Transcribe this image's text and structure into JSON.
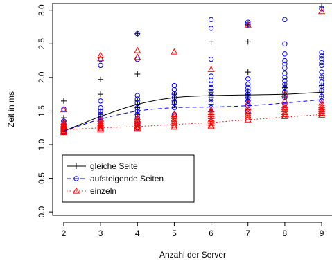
{
  "chart_data": {
    "type": "scatter",
    "title": "",
    "xlabel": "Anzahl der Server",
    "ylabel": "Zeit in ms",
    "xlim": [
      1.7,
      9.3
    ],
    "ylim": [
      -0.05,
      3.1
    ],
    "xticks": [
      "2",
      "3",
      "4",
      "5",
      "6",
      "7",
      "8",
      "9"
    ],
    "yticks": [
      "0.0",
      "0.5",
      "1.0",
      "1.5",
      "2.0",
      "2.5",
      "3.0"
    ],
    "grid": false,
    "legend_position": "bottom-left",
    "series": [
      {
        "name": "gleiche Seite",
        "color": "#000000",
        "marker": "plus",
        "line_style": "solid",
        "fit": [
          [
            2,
            1.2
          ],
          [
            3,
            1.42
          ],
          [
            4,
            1.6
          ],
          [
            5,
            1.7
          ],
          [
            6,
            1.73
          ],
          [
            7,
            1.74
          ],
          [
            8,
            1.75
          ],
          [
            9,
            1.78
          ]
        ],
        "points": [
          [
            2,
            1.65
          ],
          [
            2,
            1.4
          ],
          [
            2,
            1.35
          ],
          [
            2,
            1.3
          ],
          [
            2,
            1.25
          ],
          [
            2,
            1.2
          ],
          [
            3,
            1.97
          ],
          [
            3,
            1.75
          ],
          [
            3,
            1.5
          ],
          [
            3,
            1.45
          ],
          [
            3,
            1.4
          ],
          [
            3,
            1.35
          ],
          [
            4,
            2.65
          ],
          [
            4,
            2.05
          ],
          [
            4,
            1.65
          ],
          [
            4,
            1.6
          ],
          [
            4,
            1.55
          ],
          [
            4,
            1.5
          ],
          [
            4,
            1.45
          ],
          [
            5,
            1.75
          ],
          [
            5,
            1.7
          ],
          [
            5,
            1.65
          ],
          [
            5,
            1.6
          ],
          [
            6,
            2.53
          ],
          [
            6,
            1.82
          ],
          [
            6,
            1.78
          ],
          [
            6,
            1.74
          ],
          [
            6,
            1.7
          ],
          [
            6,
            1.66
          ],
          [
            6,
            1.6
          ],
          [
            7,
            2.78
          ],
          [
            7,
            2.53
          ],
          [
            7,
            2.08
          ],
          [
            7,
            1.8
          ],
          [
            7,
            1.75
          ],
          [
            7,
            1.7
          ],
          [
            7,
            1.65
          ],
          [
            8,
            1.9
          ],
          [
            8,
            1.85
          ],
          [
            8,
            1.8
          ],
          [
            8,
            1.75
          ],
          [
            8,
            1.7
          ],
          [
            9,
            3.05
          ],
          [
            9,
            2.0
          ],
          [
            9,
            1.88
          ],
          [
            9,
            1.83
          ],
          [
            9,
            1.78
          ],
          [
            9,
            1.72
          ]
        ]
      },
      {
        "name": "aufsteigende Seiten",
        "color": "#0000ff",
        "marker": "circle",
        "line_style": "dashed",
        "fit": [
          [
            2,
            1.2
          ],
          [
            3,
            1.38
          ],
          [
            4,
            1.5
          ],
          [
            5,
            1.55
          ],
          [
            6,
            1.56
          ],
          [
            7,
            1.58
          ],
          [
            8,
            1.62
          ],
          [
            9,
            1.67
          ]
        ],
        "points": [
          [
            2,
            1.53
          ],
          [
            2,
            1.35
          ],
          [
            2,
            1.3
          ],
          [
            2,
            1.25
          ],
          [
            2,
            1.2
          ],
          [
            2,
            1.18
          ],
          [
            3,
            2.27
          ],
          [
            3,
            2.18
          ],
          [
            3,
            1.65
          ],
          [
            3,
            1.55
          ],
          [
            3,
            1.5
          ],
          [
            3,
            1.45
          ],
          [
            3,
            1.4
          ],
          [
            3,
            1.35
          ],
          [
            4,
            2.65
          ],
          [
            4,
            2.27
          ],
          [
            4,
            1.73
          ],
          [
            4,
            1.68
          ],
          [
            4,
            1.62
          ],
          [
            4,
            1.55
          ],
          [
            4,
            1.5
          ],
          [
            4,
            1.45
          ],
          [
            4,
            1.4
          ],
          [
            4,
            1.35
          ],
          [
            4,
            1.3
          ],
          [
            4,
            1.25
          ],
          [
            5,
            1.88
          ],
          [
            5,
            1.82
          ],
          [
            5,
            1.76
          ],
          [
            5,
            1.7
          ],
          [
            5,
            1.63
          ],
          [
            5,
            1.55
          ],
          [
            5,
            1.45
          ],
          [
            6,
            2.86
          ],
          [
            6,
            2.73
          ],
          [
            6,
            2.27
          ],
          [
            6,
            2.02
          ],
          [
            6,
            1.96
          ],
          [
            6,
            1.9
          ],
          [
            6,
            1.85
          ],
          [
            6,
            1.78
          ],
          [
            6,
            1.7
          ],
          [
            6,
            1.62
          ],
          [
            6,
            1.55
          ],
          [
            6,
            1.48
          ],
          [
            7,
            2.82
          ],
          [
            7,
            2.79
          ],
          [
            7,
            1.98
          ],
          [
            7,
            1.9
          ],
          [
            7,
            1.85
          ],
          [
            7,
            1.8
          ],
          [
            7,
            1.75
          ],
          [
            7,
            1.7
          ],
          [
            7,
            1.65
          ],
          [
            7,
            1.58
          ],
          [
            7,
            1.5
          ],
          [
            8,
            2.86
          ],
          [
            8,
            2.5
          ],
          [
            8,
            2.35
          ],
          [
            8,
            2.25
          ],
          [
            8,
            2.2
          ],
          [
            8,
            2.14
          ],
          [
            8,
            2.06
          ],
          [
            8,
            2.0
          ],
          [
            8,
            1.95
          ],
          [
            8,
            1.9
          ],
          [
            8,
            1.85
          ],
          [
            8,
            1.78
          ],
          [
            8,
            1.7
          ],
          [
            8,
            1.6
          ],
          [
            9,
            3.02
          ],
          [
            9,
            2.37
          ],
          [
            9,
            2.32
          ],
          [
            9,
            2.28
          ],
          [
            9,
            2.22
          ],
          [
            9,
            2.18
          ],
          [
            9,
            2.08
          ],
          [
            9,
            2.0
          ],
          [
            9,
            1.93
          ],
          [
            9,
            1.87
          ],
          [
            9,
            1.8
          ],
          [
            9,
            1.72
          ],
          [
            9,
            1.65
          ]
        ]
      },
      {
        "name": "einzeln",
        "color": "#ff0000",
        "marker": "triangle",
        "line_style": "dotted",
        "fit": [
          [
            2,
            1.22
          ],
          [
            3,
            1.25
          ],
          [
            4,
            1.27
          ],
          [
            5,
            1.3
          ],
          [
            6,
            1.33
          ],
          [
            7,
            1.37
          ],
          [
            8,
            1.41
          ],
          [
            9,
            1.45
          ]
        ],
        "points": [
          [
            2,
            1.52
          ],
          [
            2,
            1.33
          ],
          [
            2,
            1.3
          ],
          [
            2,
            1.28
          ],
          [
            2,
            1.26
          ],
          [
            2,
            1.24
          ],
          [
            2,
            1.22
          ],
          [
            2,
            1.2
          ],
          [
            2,
            1.18
          ],
          [
            3,
            2.33
          ],
          [
            3,
            2.28
          ],
          [
            3,
            1.38
          ],
          [
            3,
            1.35
          ],
          [
            3,
            1.32
          ],
          [
            3,
            1.3
          ],
          [
            3,
            1.28
          ],
          [
            3,
            1.26
          ],
          [
            3,
            1.24
          ],
          [
            3,
            1.22
          ],
          [
            4,
            2.4
          ],
          [
            4,
            2.3
          ],
          [
            4,
            1.4
          ],
          [
            4,
            1.37
          ],
          [
            4,
            1.34
          ],
          [
            4,
            1.31
          ],
          [
            4,
            1.28
          ],
          [
            4,
            1.26
          ],
          [
            4,
            1.24
          ],
          [
            5,
            2.38
          ],
          [
            5,
            1.45
          ],
          [
            5,
            1.42
          ],
          [
            5,
            1.38
          ],
          [
            5,
            1.35
          ],
          [
            5,
            1.32
          ],
          [
            5,
            1.29
          ],
          [
            5,
            1.26
          ],
          [
            6,
            2.12
          ],
          [
            6,
            1.52
          ],
          [
            6,
            1.48
          ],
          [
            6,
            1.45
          ],
          [
            6,
            1.42
          ],
          [
            6,
            1.38
          ],
          [
            6,
            1.35
          ],
          [
            6,
            1.32
          ],
          [
            6,
            1.29
          ],
          [
            6,
            1.27
          ],
          [
            7,
            2.78
          ],
          [
            7,
            1.62
          ],
          [
            7,
            1.55
          ],
          [
            7,
            1.5
          ],
          [
            7,
            1.46
          ],
          [
            7,
            1.43
          ],
          [
            7,
            1.4
          ],
          [
            7,
            1.37
          ],
          [
            8,
            1.75
          ],
          [
            8,
            1.65
          ],
          [
            8,
            1.58
          ],
          [
            8,
            1.55
          ],
          [
            8,
            1.52
          ],
          [
            8,
            1.48
          ],
          [
            8,
            1.45
          ],
          [
            8,
            1.42
          ],
          [
            9,
            2.98
          ],
          [
            9,
            1.62
          ],
          [
            9,
            1.58
          ],
          [
            9,
            1.55
          ],
          [
            9,
            1.52
          ],
          [
            9,
            1.5
          ],
          [
            9,
            1.47
          ],
          [
            9,
            1.44
          ]
        ]
      }
    ]
  }
}
